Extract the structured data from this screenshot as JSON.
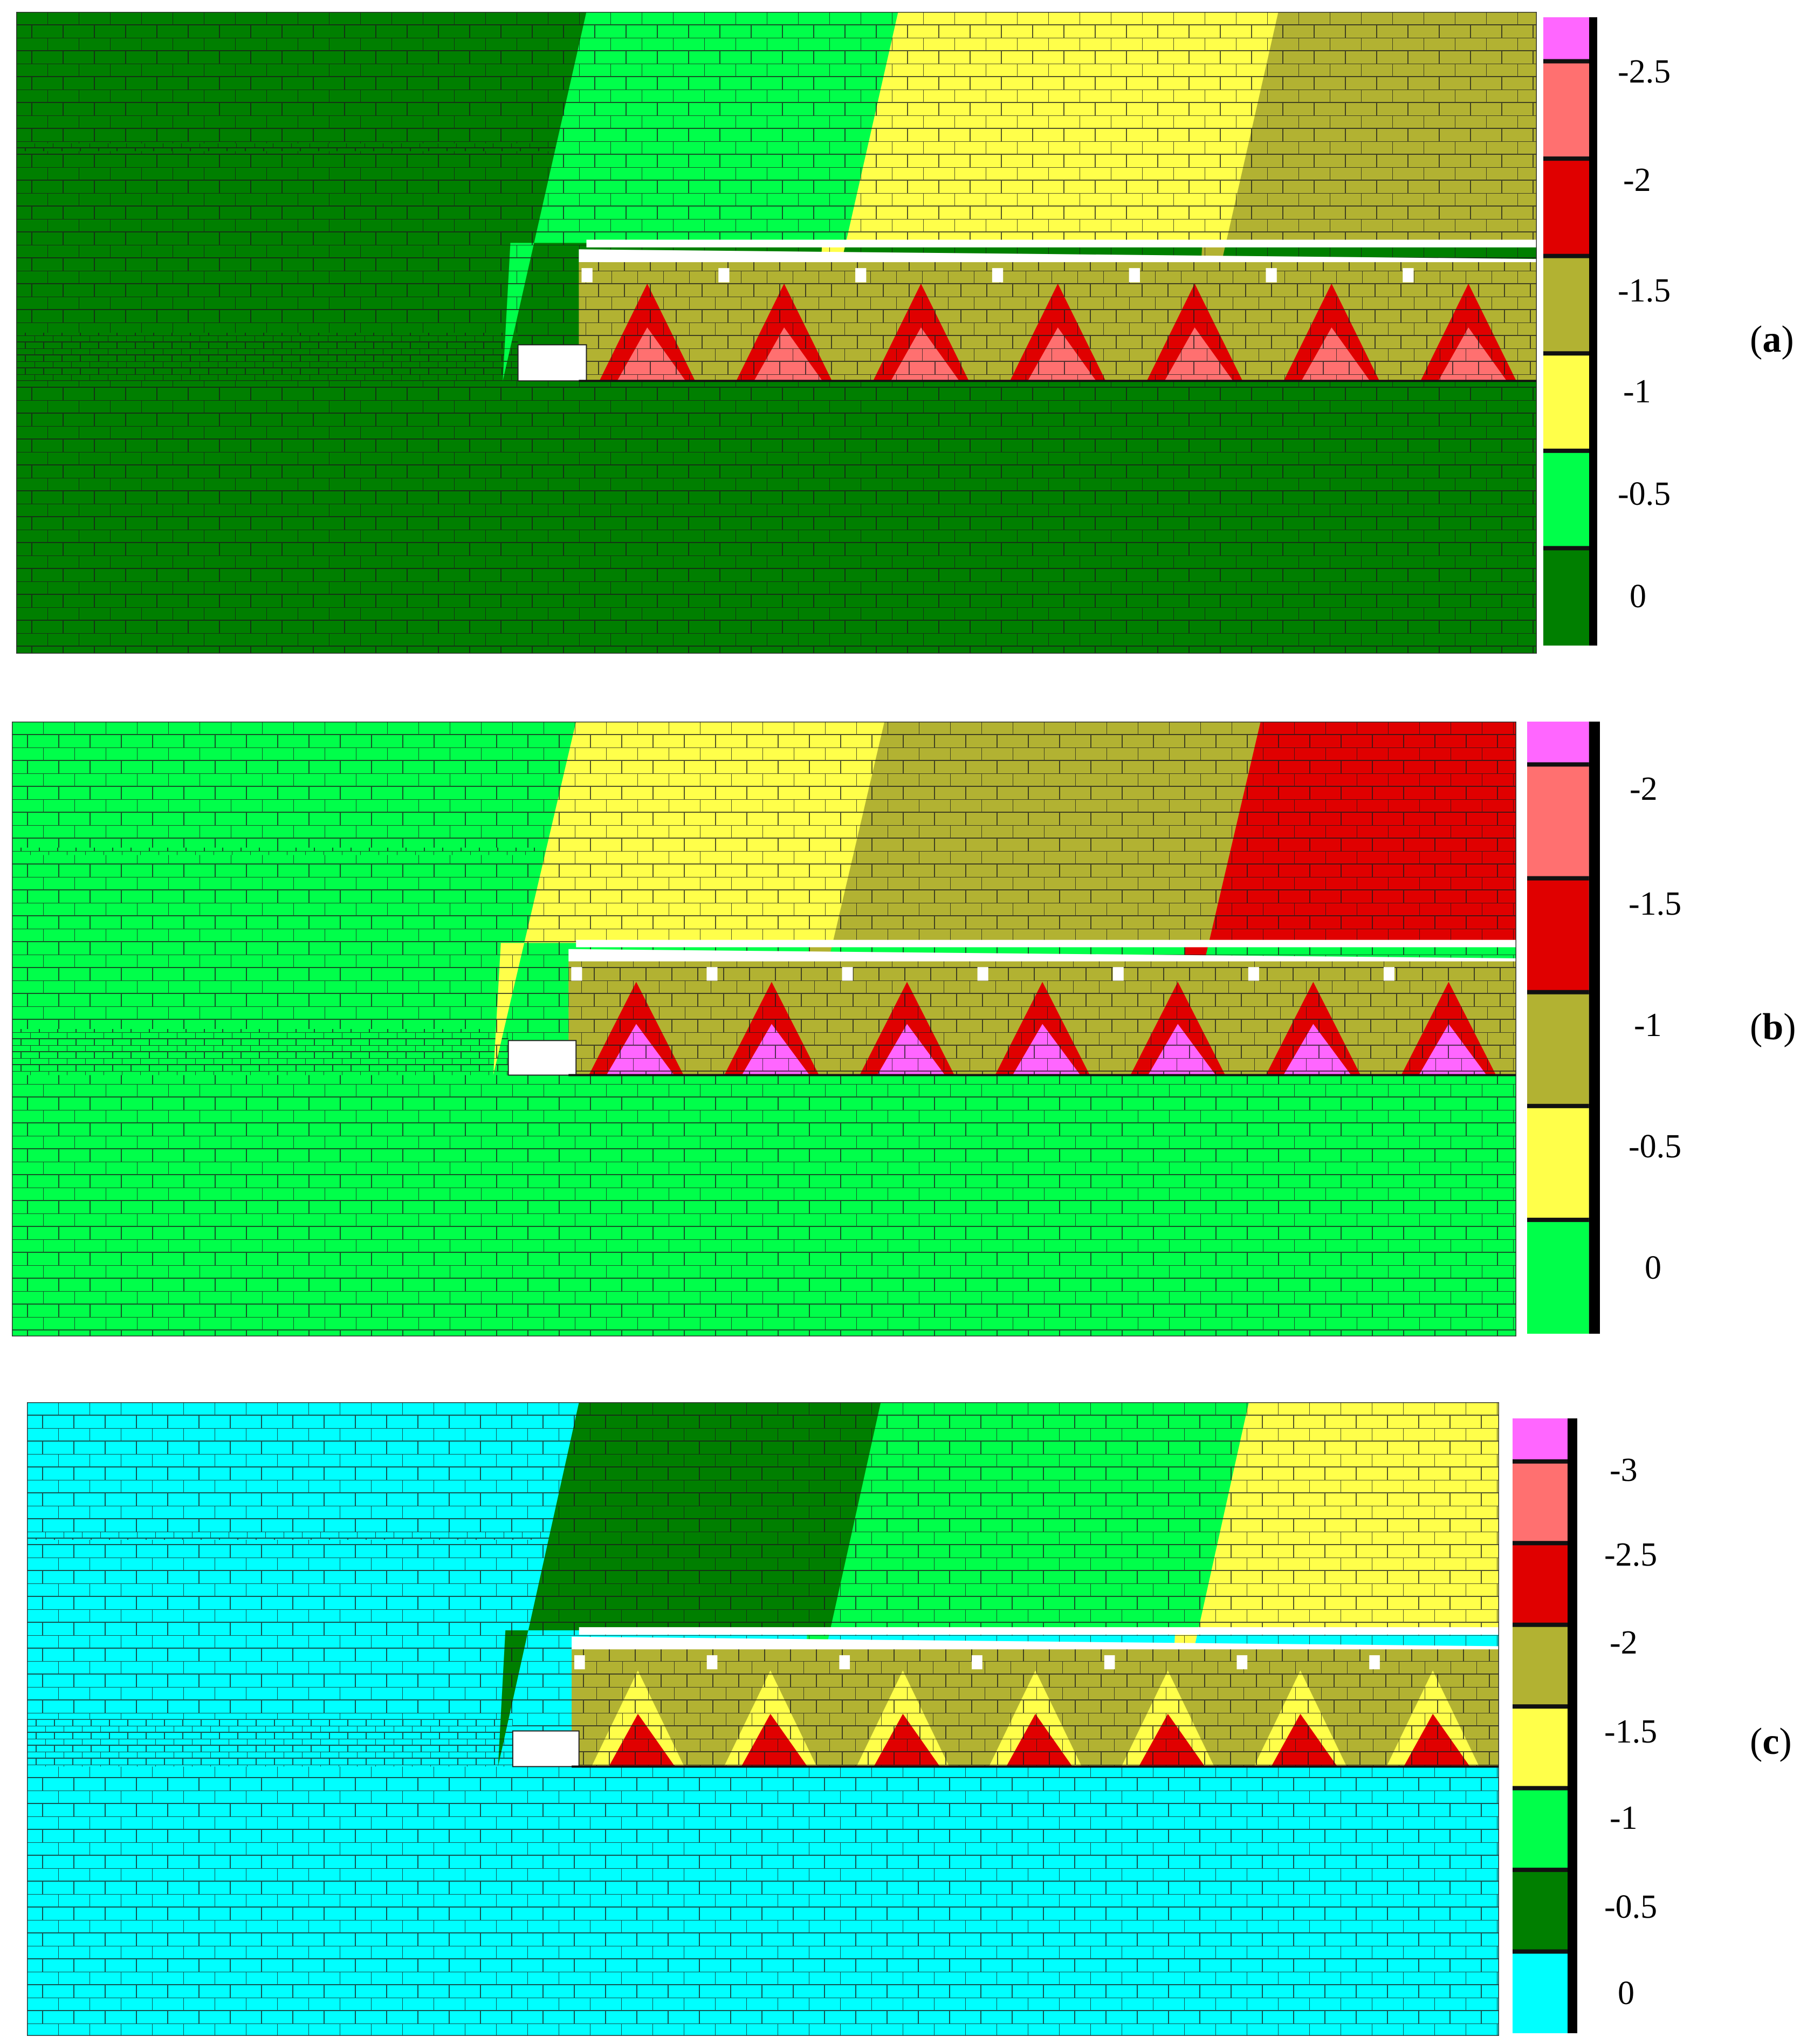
{
  "panels": [
    {
      "id": "a",
      "label_open": "(",
      "label_letter": "a",
      "label_close": ")",
      "background_color": "#007f00",
      "zone_colors": [
        "#00ff4a",
        "#ffff4a",
        "#b2b232"
      ],
      "lower_colors": [
        "#b2b232",
        "#e00000",
        "#ff7070"
      ],
      "legend": {
        "colors": [
          "#007f00",
          "#00ff4a",
          "#ffff4a",
          "#b2b232",
          "#e00000",
          "#ff7070",
          "#ff66ff"
        ],
        "ticks": [
          "-2.5",
          "-2",
          "-1.5",
          "-1",
          "-0.5",
          "0"
        ]
      }
    },
    {
      "id": "b",
      "label_open": "(",
      "label_letter": "b",
      "label_close": ")",
      "background_color": "#00ff4a",
      "zone_colors": [
        "#ffff4a",
        "#b2b232",
        "#e00000"
      ],
      "lower_colors": [
        "#b2b232",
        "#e00000",
        "#ff66ff"
      ],
      "legend": {
        "colors": [
          "#00ff4a",
          "#ffff4a",
          "#b2b232",
          "#e00000",
          "#ff7070",
          "#ff66ff"
        ],
        "ticks": [
          "-2",
          "-1.5",
          "-1",
          "-0.5",
          "0"
        ]
      }
    },
    {
      "id": "c",
      "label_open": "(",
      "label_letter": "c",
      "label_close": ")",
      "background_color": "#00ffff",
      "zone_colors": [
        "#007f00",
        "#00ff4a",
        "#ffff4a"
      ],
      "lower_colors": [
        "#b2b232",
        "#ffff4a",
        "#e00000"
      ],
      "legend": {
        "colors": [
          "#00ffff",
          "#007f00",
          "#00ff4a",
          "#ffff4a",
          "#b2b232",
          "#e00000",
          "#ff7070",
          "#ff66ff"
        ],
        "ticks": [
          "-3",
          "-2.5",
          "-2",
          "-1.5",
          "-1",
          "-0.5",
          "0"
        ]
      }
    }
  ]
}
